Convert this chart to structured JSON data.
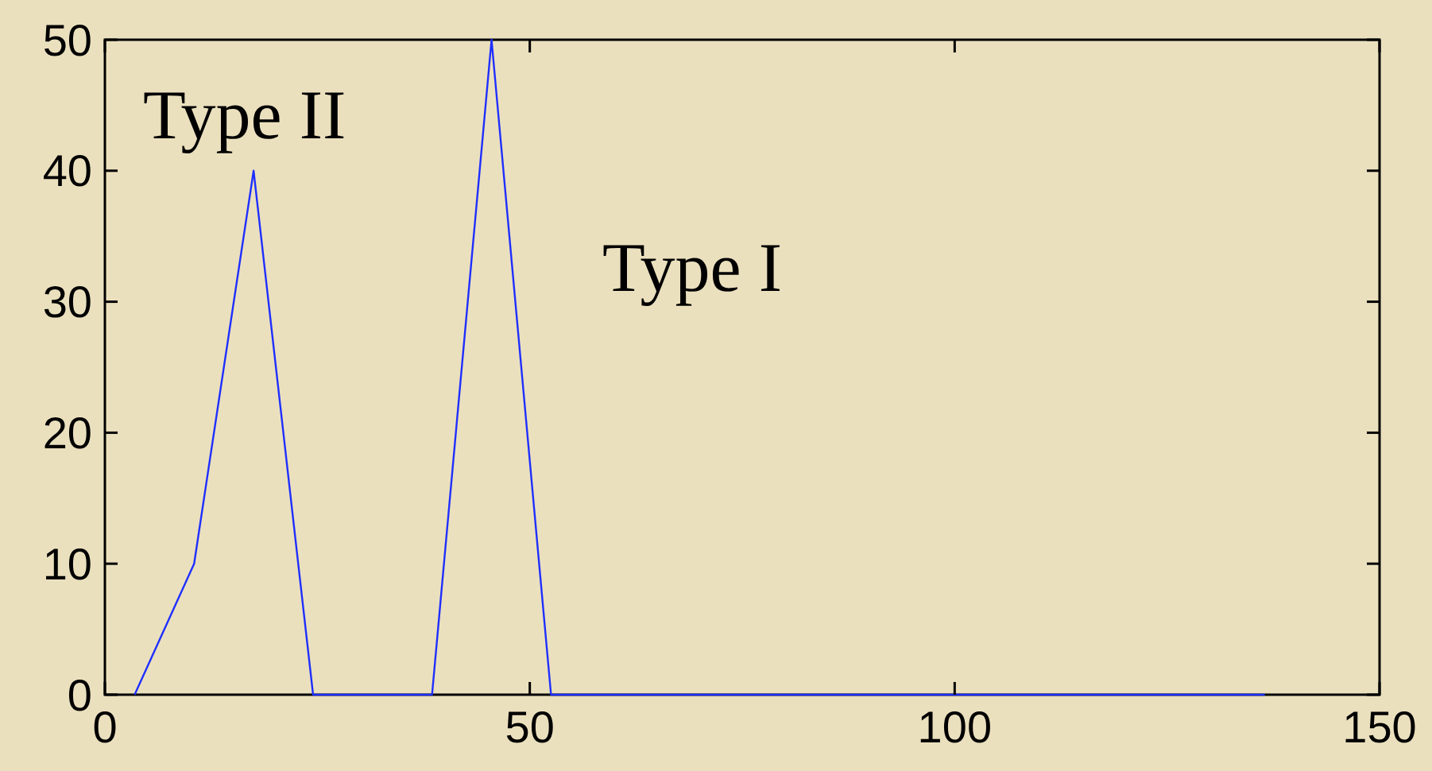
{
  "chart_data": {
    "type": "line",
    "x": [
      3.5,
      10.5,
      17.5,
      24.5,
      38.5,
      45.5,
      52.5,
      136.5
    ],
    "series": [
      {
        "color": "#1f2fff",
        "values": [
          0,
          10,
          40,
          0,
          0,
          50,
          0,
          0
        ]
      }
    ],
    "xlim": [
      0,
      150
    ],
    "xticks": [
      0,
      50,
      100,
      150
    ],
    "ylim": [
      0,
      50
    ],
    "yticks": [
      0,
      10,
      20,
      30,
      40,
      50
    ],
    "grid": false,
    "marker": "none",
    "line_style": "solid",
    "annotations": [
      "Type II",
      "Type I"
    ]
  }
}
